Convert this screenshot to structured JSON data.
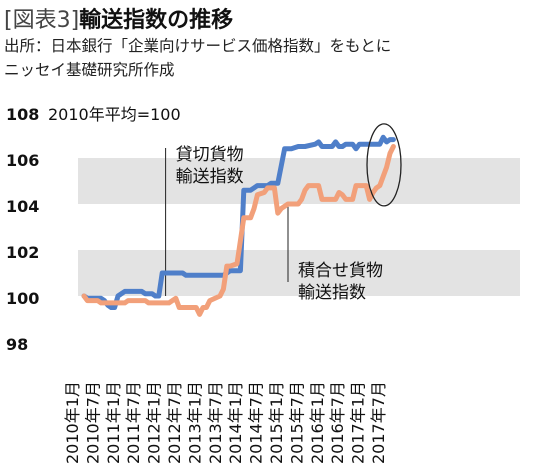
{
  "header": {
    "tag": "[図表3]",
    "title": "輸送指数の推移",
    "source_line1": "出所：日本銀行「企業向けサービス価格指数」をもとに",
    "source_line2": "ニッセイ基礎研究所作成"
  },
  "chart_data": {
    "type": "line",
    "unit_label": "2010年平均=100",
    "ylim": [
      98,
      108
    ],
    "yticks": [
      98,
      100,
      102,
      104,
      106,
      108
    ],
    "x_tick_labels": [
      "2010年1月",
      "2010年7月",
      "2011年1月",
      "2011年7月",
      "2012年1月",
      "2012年7月",
      "2013年1月",
      "2013年7月",
      "2014年1月",
      "2014年7月",
      "2015年1月",
      "2015年7月",
      "2016年1月",
      "2016年7月",
      "2017年1月",
      "2017年7月"
    ],
    "grid": "horizontal bands",
    "colors": {
      "blue": "#4f7fc9",
      "orange": "#f2a07a",
      "band": "#e3e3e3"
    },
    "series": [
      {
        "name": "貸切貨物輸送指数",
        "color": "#4f7fc9",
        "points": [
          [
            "2010-01",
            100.0
          ],
          [
            "2010-02",
            99.9
          ],
          [
            "2010-06",
            99.9
          ],
          [
            "2010-07",
            99.8
          ],
          [
            "2010-08",
            99.6
          ],
          [
            "2010-09",
            99.5
          ],
          [
            "2010-10",
            99.5
          ],
          [
            "2010-11",
            100.0
          ],
          [
            "2010-12",
            100.1
          ],
          [
            "2011-01",
            100.2
          ],
          [
            "2011-06",
            100.2
          ],
          [
            "2011-07",
            100.1
          ],
          [
            "2011-09",
            100.1
          ],
          [
            "2011-10",
            100.0
          ],
          [
            "2011-11",
            100.0
          ],
          [
            "2011-12",
            101.0
          ],
          [
            "2012-06",
            101.0
          ],
          [
            "2012-07",
            100.9
          ],
          [
            "2012-12",
            100.9
          ],
          [
            "2013-06",
            100.9
          ],
          [
            "2013-07",
            101.0
          ],
          [
            "2013-08",
            101.1
          ],
          [
            "2013-11",
            101.1
          ],
          [
            "2013-12",
            104.6
          ],
          [
            "2014-02",
            104.6
          ],
          [
            "2014-03",
            104.7
          ],
          [
            "2014-04",
            104.8
          ],
          [
            "2014-07",
            104.8
          ],
          [
            "2014-08",
            104.9
          ],
          [
            "2014-10",
            104.9
          ],
          [
            "2014-12",
            106.4
          ],
          [
            "2015-01",
            106.4
          ],
          [
            "2015-02",
            106.4
          ],
          [
            "2015-04",
            106.5
          ],
          [
            "2015-06",
            106.5
          ],
          [
            "2015-09",
            106.6
          ],
          [
            "2015-10",
            106.7
          ],
          [
            "2015-11",
            106.5
          ],
          [
            "2016-01",
            106.5
          ],
          [
            "2016-02",
            106.5
          ],
          [
            "2016-03",
            106.7
          ],
          [
            "2016-04",
            106.5
          ],
          [
            "2016-05",
            106.5
          ],
          [
            "2016-06",
            106.6
          ],
          [
            "2016-08",
            106.6
          ],
          [
            "2016-09",
            106.4
          ],
          [
            "2016-10",
            106.6
          ],
          [
            "2016-12",
            106.6
          ],
          [
            "2017-02",
            106.6
          ],
          [
            "2017-04",
            106.6
          ],
          [
            "2017-05",
            106.9
          ],
          [
            "2017-06",
            106.7
          ],
          [
            "2017-07",
            106.8
          ],
          [
            "2017-08",
            106.8
          ]
        ]
      },
      {
        "name": "積合せ貨物輸送指数",
        "color": "#f2a07a",
        "points": [
          [
            "2010-01",
            100.0
          ],
          [
            "2010-02",
            99.8
          ],
          [
            "2010-05",
            99.8
          ],
          [
            "2010-06",
            99.7
          ],
          [
            "2011-01",
            99.7
          ],
          [
            "2011-02",
            99.8
          ],
          [
            "2011-03",
            99.8
          ],
          [
            "2011-07",
            99.8
          ],
          [
            "2011-08",
            99.7
          ],
          [
            "2011-09",
            99.7
          ],
          [
            "2012-01",
            99.7
          ],
          [
            "2012-02",
            99.7
          ],
          [
            "2012-03",
            99.8
          ],
          [
            "2012-04",
            99.9
          ],
          [
            "2012-05",
            99.5
          ],
          [
            "2012-09",
            99.5
          ],
          [
            "2012-10",
            99.5
          ],
          [
            "2012-11",
            99.2
          ],
          [
            "2012-12",
            99.5
          ],
          [
            "2013-01",
            99.5
          ],
          [
            "2013-02",
            99.8
          ],
          [
            "2013-05",
            100.0
          ],
          [
            "2013-06",
            100.3
          ],
          [
            "2013-07",
            101.3
          ],
          [
            "2013-08",
            101.3
          ],
          [
            "2013-10",
            101.4
          ],
          [
            "2013-12",
            103.4
          ],
          [
            "2014-02",
            103.4
          ],
          [
            "2014-03",
            103.8
          ],
          [
            "2014-04",
            104.4
          ],
          [
            "2014-06",
            104.5
          ],
          [
            "2014-07",
            104.7
          ],
          [
            "2014-09",
            104.7
          ],
          [
            "2014-10",
            103.6
          ],
          [
            "2014-11",
            103.8
          ],
          [
            "2015-01",
            104.0
          ],
          [
            "2015-04",
            104.0
          ],
          [
            "2015-05",
            104.2
          ],
          [
            "2015-06",
            104.6
          ],
          [
            "2015-07",
            104.8
          ],
          [
            "2015-10",
            104.8
          ],
          [
            "2015-11",
            104.2
          ],
          [
            "2016-03",
            104.2
          ],
          [
            "2016-04",
            104.5
          ],
          [
            "2016-05",
            104.4
          ],
          [
            "2016-06",
            104.2
          ],
          [
            "2016-08",
            104.2
          ],
          [
            "2016-09",
            104.8
          ],
          [
            "2016-12",
            104.8
          ],
          [
            "2017-01",
            104.2
          ],
          [
            "2017-02",
            104.5
          ],
          [
            "2017-03",
            104.7
          ],
          [
            "2017-04",
            104.8
          ],
          [
            "2017-05",
            105.2
          ],
          [
            "2017-06",
            105.6
          ],
          [
            "2017-07",
            106.2
          ],
          [
            "2017-08",
            106.5
          ]
        ]
      }
    ],
    "annotations": [
      {
        "lines": [
          "貸切貨物",
          "輸送指数"
        ],
        "series": 0,
        "date": "2012-01"
      },
      {
        "lines": [
          "積合せ貨物",
          "輸送指数"
        ],
        "series": 1,
        "date": "2015-01"
      }
    ],
    "highlight": "2017-07"
  }
}
